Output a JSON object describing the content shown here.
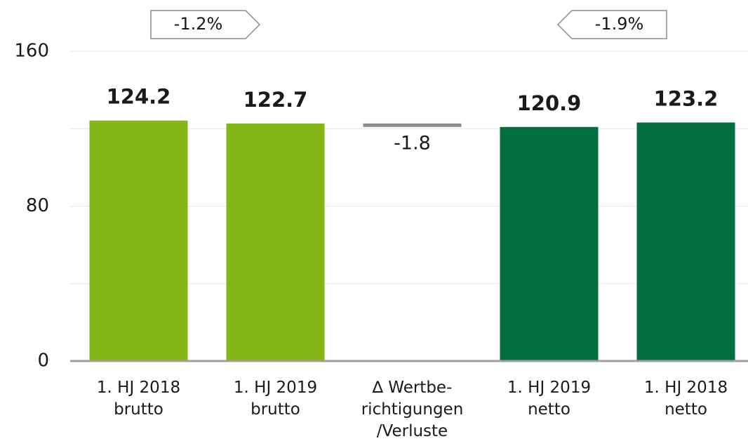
{
  "chart_data": {
    "type": "waterfall",
    "categories": [
      [
        "1. HJ 2018",
        "brutto"
      ],
      [
        "1. HJ 2019",
        "brutto"
      ],
      [
        "∆ Wertbe-",
        "richtigungen",
        "/Verluste"
      ],
      [
        "1. HJ 2019",
        "netto"
      ],
      [
        "1. HJ 2018",
        "netto"
      ]
    ],
    "values": [
      124.2,
      122.7,
      -1.8,
      120.9,
      123.2
    ],
    "colors": [
      "#84b616",
      "#84b616",
      "#8c8c8c",
      "#006e3f",
      "#006e3f"
    ],
    "ylim": [
      0,
      160
    ],
    "yticks": [
      0,
      80,
      160
    ],
    "minor_grid": [
      40,
      120
    ],
    "grid": true,
    "annotations": [
      {
        "text": "-1.2%",
        "direction": "right"
      },
      {
        "text": "-1.9%",
        "direction": "left"
      }
    ]
  }
}
